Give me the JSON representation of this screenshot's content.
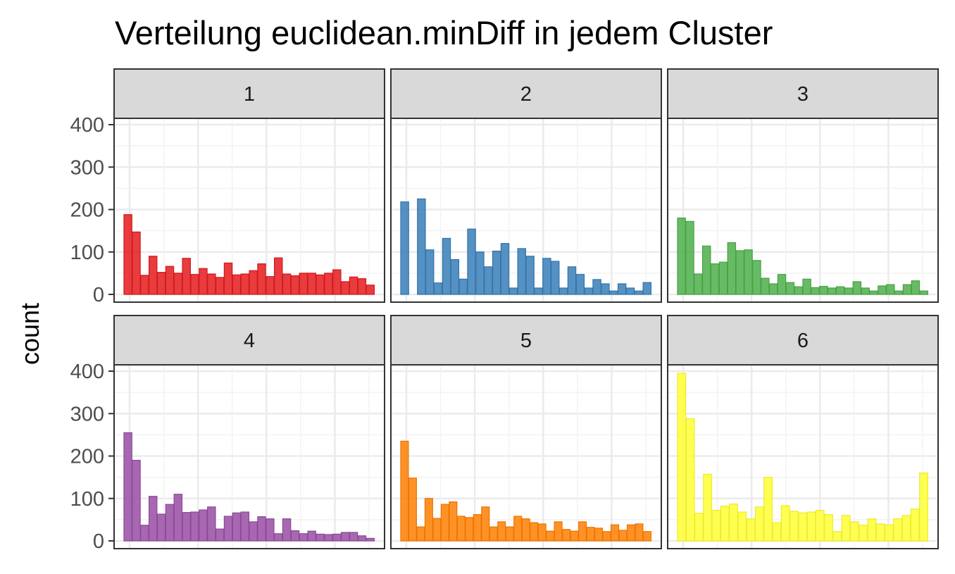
{
  "chart_data": {
    "type": "bar",
    "title": "Verteilung euclidean.minDiff in jedem Cluster",
    "ylabel": "count",
    "xlabel": "",
    "ylim": [
      0,
      400
    ],
    "y_ticks": [
      0,
      100,
      200,
      300,
      400
    ],
    "grid": true,
    "x_tick_labels_shown": false,
    "facets": [
      {
        "name": "1",
        "color": "#E41A1C",
        "values": [
          188,
          147,
          45,
          90,
          52,
          66,
          50,
          85,
          47,
          61,
          48,
          40,
          74,
          46,
          48,
          56,
          72,
          42,
          86,
          48,
          44,
          50,
          50,
          46,
          50,
          58,
          30,
          41,
          37,
          22
        ]
      },
      {
        "name": "2",
        "color": "#377EB8",
        "values": [
          218,
          0,
          225,
          105,
          27,
          132,
          82,
          36,
          154,
          100,
          65,
          102,
          120,
          15,
          108,
          90,
          15,
          85,
          78,
          15,
          65,
          47,
          15,
          35,
          25,
          8,
          25,
          15,
          8,
          28
        ]
      },
      {
        "name": "3",
        "color": "#4DAF4A",
        "values": [
          180,
          172,
          48,
          114,
          72,
          76,
          122,
          103,
          105,
          80,
          38,
          25,
          47,
          28,
          18,
          36,
          16,
          19,
          15,
          18,
          15,
          30,
          15,
          8,
          20,
          23,
          8,
          23,
          32,
          8
        ]
      },
      {
        "name": "4",
        "color": "#984EA3",
        "values": [
          255,
          190,
          37,
          105,
          63,
          86,
          110,
          67,
          68,
          73,
          80,
          28,
          58,
          66,
          68,
          45,
          57,
          52,
          17,
          52,
          24,
          17,
          23,
          16,
          15,
          16,
          20,
          20,
          12,
          6
        ]
      },
      {
        "name": "5",
        "color": "#FF7F00",
        "values": [
          235,
          148,
          33,
          100,
          53,
          86,
          92,
          58,
          55,
          62,
          80,
          33,
          45,
          33,
          58,
          52,
          43,
          40,
          23,
          45,
          27,
          23,
          45,
          32,
          30,
          22,
          38,
          25,
          38,
          40,
          22
        ]
      },
      {
        "name": "6",
        "color": "#FFFF33",
        "values": [
          395,
          288,
          65,
          157,
          72,
          82,
          87,
          68,
          52,
          80,
          150,
          43,
          83,
          70,
          66,
          68,
          72,
          62,
          22,
          60,
          45,
          37,
          52,
          40,
          38,
          52,
          60,
          75,
          160
        ]
      }
    ]
  }
}
